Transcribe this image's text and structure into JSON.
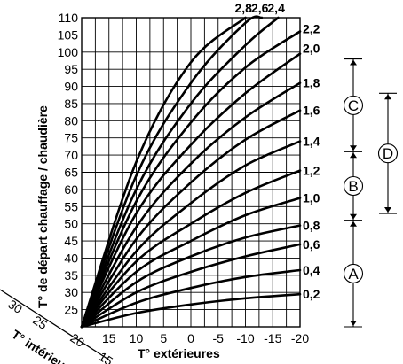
{
  "chart_data": {
    "type": "line",
    "ylabel": "T° de départ chauffage / chaudière",
    "xlabel": "T° extérieures",
    "inner_label": "T° intérieures",
    "x_range": [
      20,
      -20
    ],
    "y_range": [
      20,
      110
    ],
    "x_ticks": [
      {
        "value": 15,
        "label": "15"
      },
      {
        "value": 10,
        "label": "10"
      },
      {
        "value": 5,
        "label": "5"
      },
      {
        "value": 0,
        "label": "0"
      },
      {
        "value": -5,
        "label": "-5"
      },
      {
        "value": -10,
        "label": "-10"
      },
      {
        "value": -15,
        "label": "-15"
      },
      {
        "value": -20,
        "label": "-20"
      }
    ],
    "y_ticks": [
      {
        "value": 25,
        "label": "25"
      },
      {
        "value": 30,
        "label": "30"
      },
      {
        "value": 35,
        "label": "35"
      },
      {
        "value": 40,
        "label": "40"
      },
      {
        "value": 45,
        "label": "45"
      },
      {
        "value": 50,
        "label": "50"
      },
      {
        "value": 55,
        "label": "55"
      },
      {
        "value": 60,
        "label": "60"
      },
      {
        "value": 65,
        "label": "65"
      },
      {
        "value": 70,
        "label": "70"
      },
      {
        "value": 75,
        "label": "75"
      },
      {
        "value": 80,
        "label": "80"
      },
      {
        "value": 85,
        "label": "85"
      },
      {
        "value": 90,
        "label": "90"
      },
      {
        "value": 95,
        "label": "95"
      },
      {
        "value": 100,
        "label": "100"
      },
      {
        "value": 105,
        "label": "105"
      },
      {
        "value": 110,
        "label": "110"
      }
    ],
    "inner_ticks": [
      {
        "value": 30,
        "label": "30"
      },
      {
        "value": 25,
        "label": "25"
      },
      {
        "value": 20,
        "label": "20"
      },
      {
        "value": 15,
        "label": "15"
      }
    ],
    "origin": {
      "x": 20,
      "y": 20
    },
    "series": [
      {
        "slope_label": "0,2",
        "points": [
          [
            20,
            20
          ],
          [
            10,
            24
          ],
          [
            0,
            26.5
          ],
          [
            -10,
            28.3
          ],
          [
            -20,
            29.5
          ]
        ]
      },
      {
        "slope_label": "0,4",
        "points": [
          [
            20,
            20
          ],
          [
            10,
            27
          ],
          [
            0,
            31.3
          ],
          [
            -10,
            34.5
          ],
          [
            -20,
            36.5
          ]
        ]
      },
      {
        "slope_label": "0,6",
        "points": [
          [
            20,
            20
          ],
          [
            10,
            30
          ],
          [
            0,
            36
          ],
          [
            -10,
            40.5
          ],
          [
            -20,
            44
          ]
        ]
      },
      {
        "slope_label": "0,8",
        "points": [
          [
            20,
            20
          ],
          [
            10,
            33
          ],
          [
            0,
            40.5
          ],
          [
            -10,
            46
          ],
          [
            -20,
            49.5
          ]
        ]
      },
      {
        "slope_label": "1,0",
        "points": [
          [
            20,
            20
          ],
          [
            10,
            36
          ],
          [
            0,
            45
          ],
          [
            -10,
            52.5
          ],
          [
            -20,
            57.5
          ]
        ]
      },
      {
        "slope_label": "1,2",
        "points": [
          [
            20,
            20
          ],
          [
            10,
            39
          ],
          [
            0,
            50
          ],
          [
            -10,
            59
          ],
          [
            -20,
            65.5
          ]
        ]
      },
      {
        "slope_label": "1,4",
        "points": [
          [
            20,
            20
          ],
          [
            10,
            42
          ],
          [
            0,
            56
          ],
          [
            -10,
            67
          ],
          [
            -20,
            74
          ]
        ]
      },
      {
        "slope_label": "1,6",
        "points": [
          [
            20,
            20
          ],
          [
            10,
            45.5
          ],
          [
            0,
            62
          ],
          [
            -10,
            74.5
          ],
          [
            -20,
            83
          ]
        ]
      },
      {
        "slope_label": "1,8",
        "points": [
          [
            20,
            20
          ],
          [
            10,
            49
          ],
          [
            0,
            67.5
          ],
          [
            -10,
            81
          ],
          [
            -20,
            91
          ]
        ]
      },
      {
        "slope_label": "2,0",
        "points": [
          [
            20,
            20
          ],
          [
            10,
            53
          ],
          [
            0,
            73
          ],
          [
            -10,
            88
          ],
          [
            -20,
            99.5
          ]
        ]
      },
      {
        "slope_label": "2,2",
        "points": [
          [
            20,
            20
          ],
          [
            10,
            56.5
          ],
          [
            0,
            79.5
          ],
          [
            -10,
            95.5
          ],
          [
            -20,
            106
          ]
        ]
      },
      {
        "slope_label": "2,4",
        "points": [
          [
            20,
            20
          ],
          [
            10,
            60
          ],
          [
            0,
            85
          ],
          [
            -10,
            102
          ],
          [
            -16,
            110
          ]
        ]
      },
      {
        "slope_label": "2,6",
        "points": [
          [
            20,
            20
          ],
          [
            10,
            64
          ],
          [
            0,
            91
          ],
          [
            -10,
            108.5
          ],
          [
            -13,
            110
          ]
        ]
      },
      {
        "slope_label": "2,8",
        "points": [
          [
            20,
            20
          ],
          [
            10,
            68
          ],
          [
            0,
            97
          ],
          [
            -10,
            110
          ]
        ]
      }
    ],
    "zones": [
      {
        "label": "A",
        "y_from": 20,
        "y_to": 51
      },
      {
        "label": "B",
        "y_from": 51,
        "y_to": 71
      },
      {
        "label": "C",
        "y_from": 71,
        "y_to": 98
      },
      {
        "label": "D",
        "y_from": 53,
        "y_to": 88
      }
    ]
  }
}
